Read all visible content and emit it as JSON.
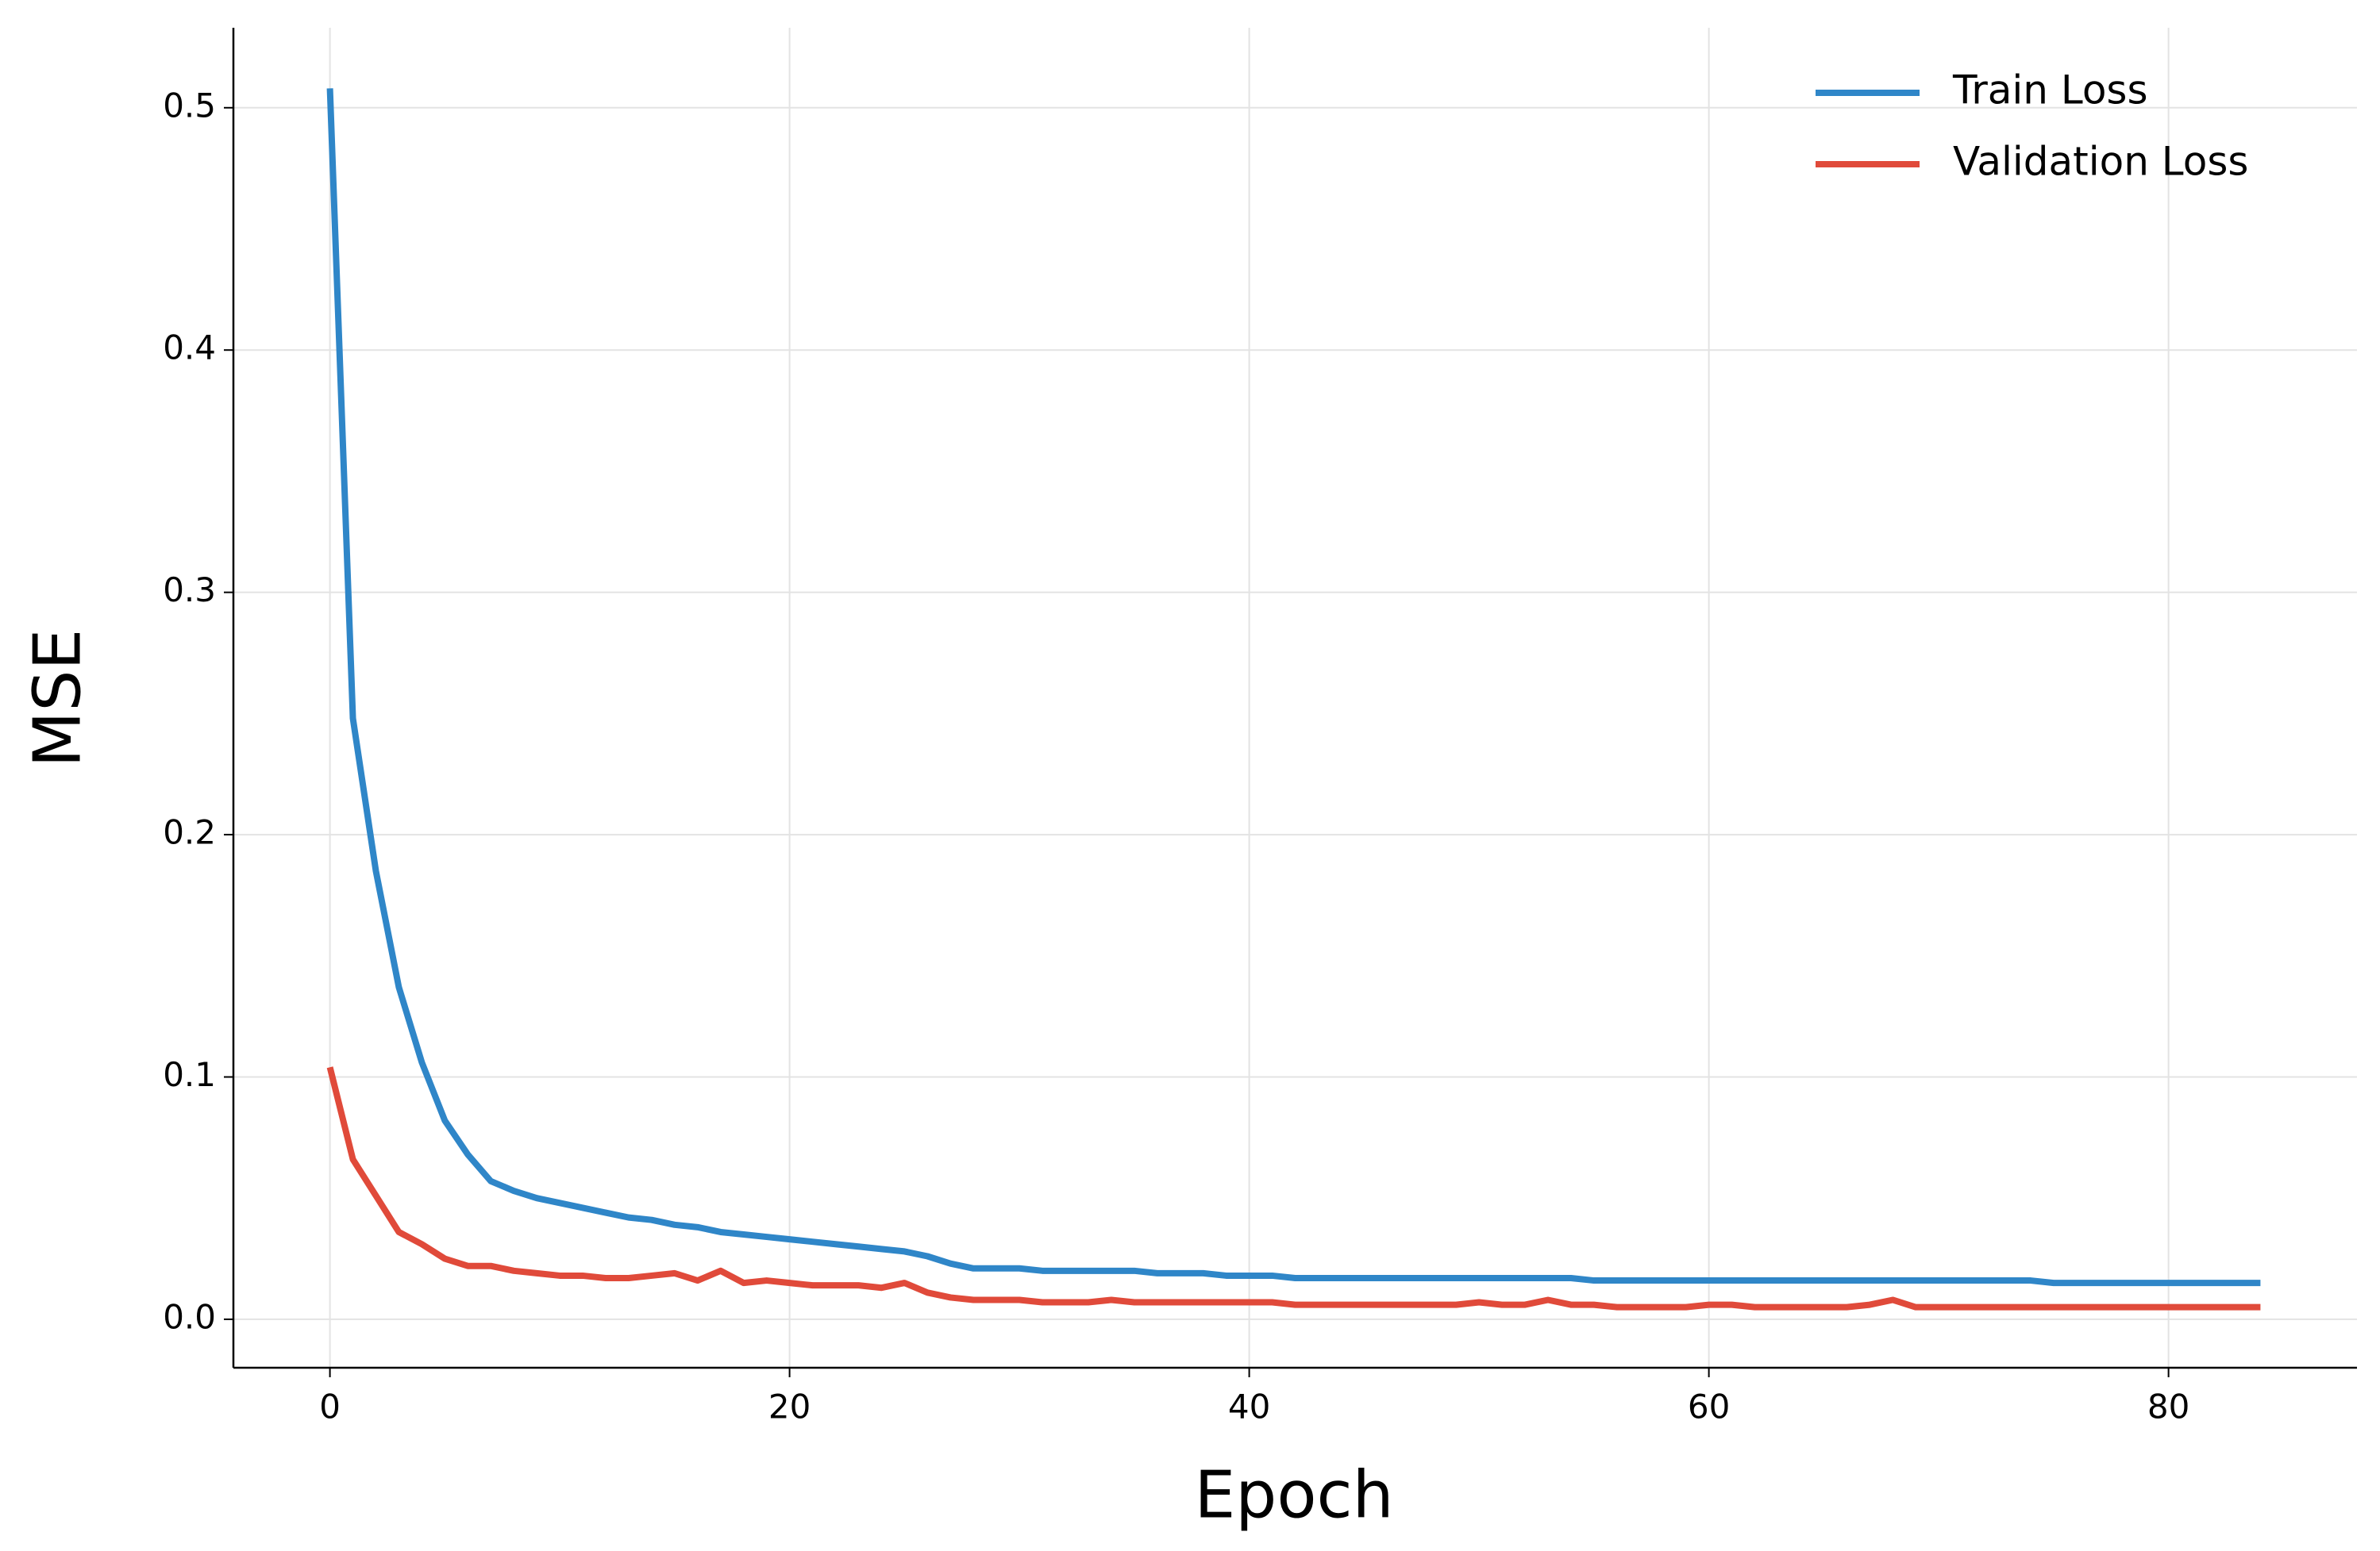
{
  "chart_data": {
    "type": "line",
    "x_label": "Epoch",
    "y_label": "MSE",
    "x": [
      0,
      1,
      2,
      3,
      4,
      5,
      6,
      7,
      8,
      9,
      10,
      11,
      12,
      13,
      14,
      15,
      16,
      17,
      18,
      19,
      20,
      21,
      22,
      23,
      24,
      25,
      26,
      27,
      28,
      29,
      30,
      31,
      32,
      33,
      34,
      35,
      36,
      37,
      38,
      39,
      40,
      41,
      42,
      43,
      44,
      45,
      46,
      47,
      48,
      49,
      50,
      51,
      52,
      53,
      54,
      55,
      56,
      57,
      58,
      59,
      60,
      61,
      62,
      63,
      64,
      65,
      66,
      67,
      68,
      69,
      70,
      71,
      72,
      73,
      74,
      75,
      76,
      77,
      78,
      79,
      80,
      81,
      82,
      83,
      84
    ],
    "series": [
      {
        "name": "Train Loss",
        "color": "#2f86c8",
        "values": [
          0.508,
          0.248,
          0.185,
          0.137,
          0.106,
          0.082,
          0.068,
          0.057,
          0.053,
          0.05,
          0.048,
          0.046,
          0.044,
          0.042,
          0.041,
          0.039,
          0.038,
          0.036,
          0.035,
          0.034,
          0.033,
          0.032,
          0.031,
          0.03,
          0.029,
          0.028,
          0.026,
          0.023,
          0.021,
          0.021,
          0.021,
          0.02,
          0.02,
          0.02,
          0.02,
          0.02,
          0.019,
          0.019,
          0.019,
          0.018,
          0.018,
          0.018,
          0.017,
          0.017,
          0.017,
          0.017,
          0.017,
          0.017,
          0.017,
          0.017,
          0.017,
          0.017,
          0.017,
          0.017,
          0.017,
          0.016,
          0.016,
          0.016,
          0.016,
          0.016,
          0.016,
          0.016,
          0.016,
          0.016,
          0.016,
          0.016,
          0.016,
          0.016,
          0.016,
          0.016,
          0.016,
          0.016,
          0.016,
          0.016,
          0.016,
          0.015,
          0.015,
          0.015,
          0.015,
          0.015,
          0.015,
          0.015,
          0.015,
          0.015,
          0.015
        ]
      },
      {
        "name": "Validation Loss",
        "color": "#e04a3a",
        "values": [
          0.104,
          0.066,
          0.051,
          0.036,
          0.031,
          0.025,
          0.022,
          0.022,
          0.02,
          0.019,
          0.018,
          0.018,
          0.017,
          0.017,
          0.018,
          0.019,
          0.016,
          0.02,
          0.015,
          0.016,
          0.015,
          0.014,
          0.014,
          0.014,
          0.013,
          0.015,
          0.011,
          0.009,
          0.008,
          0.008,
          0.008,
          0.007,
          0.007,
          0.007,
          0.008,
          0.007,
          0.007,
          0.007,
          0.007,
          0.007,
          0.007,
          0.007,
          0.006,
          0.006,
          0.006,
          0.006,
          0.006,
          0.006,
          0.006,
          0.006,
          0.007,
          0.006,
          0.006,
          0.008,
          0.006,
          0.006,
          0.005,
          0.005,
          0.005,
          0.005,
          0.006,
          0.006,
          0.005,
          0.005,
          0.005,
          0.005,
          0.005,
          0.006,
          0.008,
          0.005,
          0.005,
          0.005,
          0.005,
          0.005,
          0.005,
          0.005,
          0.005,
          0.005,
          0.005,
          0.005,
          0.005,
          0.005,
          0.005,
          0.005,
          0.005
        ]
      }
    ],
    "xlim": [
      -4.2,
      88.2
    ],
    "ylim": [
      -0.02,
      0.533
    ],
    "xticks": [
      0,
      20,
      40,
      60,
      80
    ],
    "yticks": [
      {
        "value": 0,
        "label": "0.0"
      },
      0.1,
      0.2,
      0.3,
      0.4,
      0.5
    ],
    "grid": true,
    "legend": "upper right"
  }
}
